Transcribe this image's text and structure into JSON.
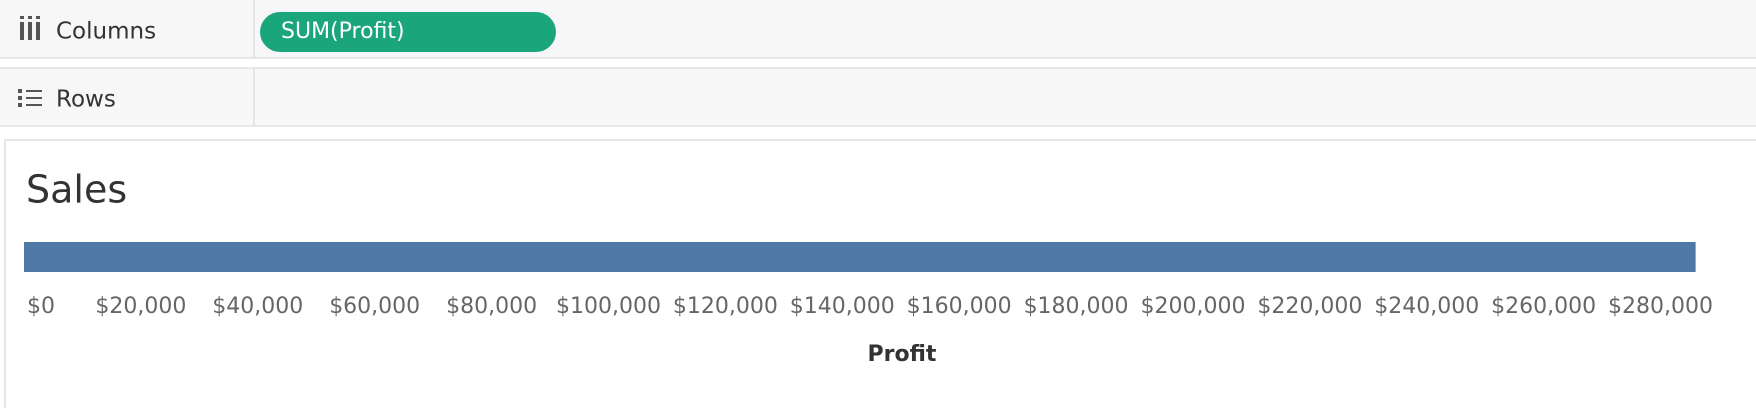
{
  "shelves": {
    "columns_label": "Columns",
    "columns_pill": "SUM(Profit)",
    "rows_label": "Rows"
  },
  "chart_data": {
    "type": "bar",
    "orientation": "horizontal",
    "title": "Sales",
    "x_label": "Profit",
    "categories": [
      null
    ],
    "values": [
      286000
    ],
    "color": "#4e79a7",
    "xlim": [
      0,
      290000
    ],
    "xticks": [
      {
        "value": 0,
        "label": "$0"
      },
      {
        "value": 20000,
        "label": "$20,000"
      },
      {
        "value": 40000,
        "label": "$40,000"
      },
      {
        "value": 60000,
        "label": "$60,000"
      },
      {
        "value": 80000,
        "label": "$80,000"
      },
      {
        "value": 100000,
        "label": "$100,000"
      },
      {
        "value": 120000,
        "label": "$120,000"
      },
      {
        "value": 140000,
        "label": "$140,000"
      },
      {
        "value": 160000,
        "label": "$160,000"
      },
      {
        "value": 180000,
        "label": "$180,000"
      },
      {
        "value": 200000,
        "label": "$200,000"
      },
      {
        "value": 220000,
        "label": "$220,000"
      },
      {
        "value": 240000,
        "label": "$240,000"
      },
      {
        "value": 260000,
        "label": "$260,000"
      },
      {
        "value": 280000,
        "label": "$280,000"
      }
    ],
    "grid": false
  }
}
